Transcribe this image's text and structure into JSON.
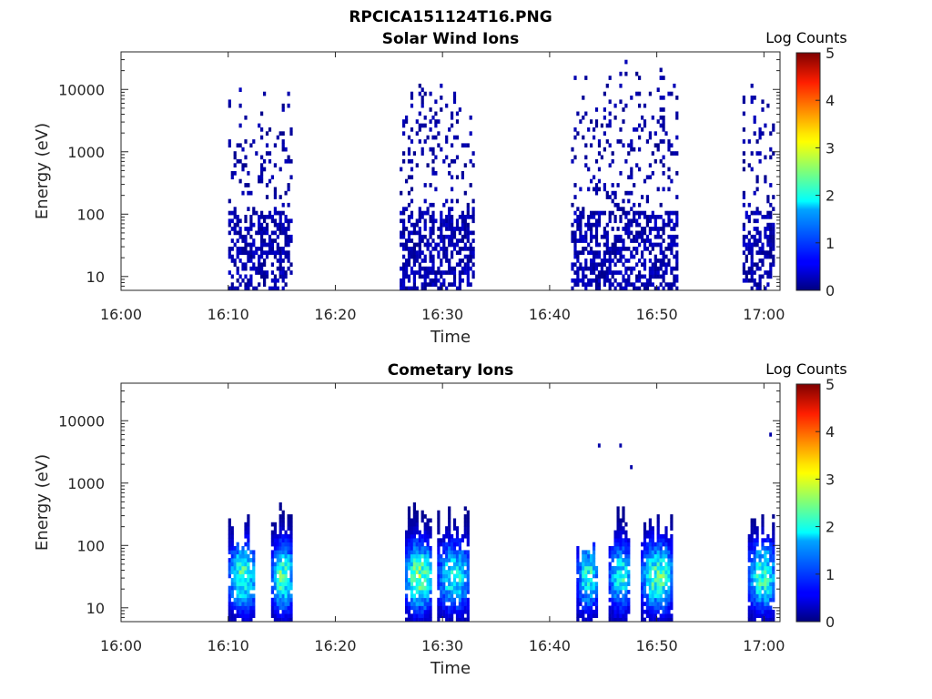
{
  "figure": {
    "title": "RPCICA151124T16.PNG"
  },
  "colorbar_label": "Log Counts",
  "colorbar_ticks": [
    "0",
    "1",
    "2",
    "3",
    "4",
    "5"
  ],
  "chart_data": [
    {
      "type": "heatmap",
      "title": "Solar Wind Ions",
      "xlabel": "Time",
      "ylabel": "Energy (eV)",
      "x_ticks": [
        "16:00",
        "16:10",
        "16:20",
        "16:30",
        "16:40",
        "16:50",
        "17:00"
      ],
      "x_range_minutes": [
        0,
        61.5
      ],
      "y_scale": "log",
      "y_ticks": [
        10,
        100,
        1000,
        10000
      ],
      "y_tick_labels": [
        "10",
        "100",
        "1000",
        "10000"
      ],
      "y_range": [
        6,
        40000
      ],
      "color_scale": "jet",
      "color_range": [
        0,
        5
      ],
      "grid": false,
      "bursts": [
        {
          "start": "16:10",
          "end": "16:16",
          "e_max": 15000,
          "low_energy_level": 0.3,
          "high_energy_level": 0.15
        },
        {
          "start": "16:26",
          "end": "16:33",
          "e_max": 13000,
          "low_energy_level": 0.3,
          "high_energy_level": 0.15
        },
        {
          "start": "16:42",
          "end": "16:52",
          "e_max": 35000,
          "low_energy_level": 0.3,
          "high_energy_level": 0.15
        },
        {
          "start": "16:58",
          "end": "17:01",
          "e_max": 14000,
          "low_energy_level": 0.3,
          "high_energy_level": 0.15
        }
      ]
    },
    {
      "type": "heatmap",
      "title": "Cometary Ions",
      "xlabel": "Time",
      "ylabel": "Energy (eV)",
      "x_ticks": [
        "16:00",
        "16:10",
        "16:20",
        "16:30",
        "16:40",
        "16:50",
        "17:00"
      ],
      "x_range_minutes": [
        0,
        61.5
      ],
      "y_scale": "log",
      "y_ticks": [
        10,
        100,
        1000,
        10000
      ],
      "y_tick_labels": [
        "10",
        "100",
        "1000",
        "10000"
      ],
      "y_range": [
        6,
        40000
      ],
      "color_scale": "jet",
      "color_range": [
        0,
        5
      ],
      "grid": false,
      "bursts": [
        {
          "start": "16:10",
          "end": "16:12.5",
          "e_max": 300,
          "peak_energy": 30,
          "peak_log_counts": 2.3
        },
        {
          "start": "16:14",
          "end": "16:16",
          "e_max": 600,
          "peak_energy": 30,
          "peak_log_counts": 2.3
        },
        {
          "start": "16:26.5",
          "end": "16:29",
          "e_max": 700,
          "peak_energy": 30,
          "peak_log_counts": 2.5
        },
        {
          "start": "16:29.5",
          "end": "16:32.5",
          "e_max": 500,
          "peak_energy": 30,
          "peak_log_counts": 2.0
        },
        {
          "start": "16:42.5",
          "end": "16:44.5",
          "e_max": 150,
          "peak_energy": 30,
          "peak_log_counts": 2.0
        },
        {
          "start": "16:45.5",
          "end": "16:47.5",
          "e_max": 400,
          "peak_energy": 30,
          "peak_log_counts": 2.0
        },
        {
          "start": "16:48.5",
          "end": "16:51.5",
          "e_max": 300,
          "peak_energy": 30,
          "peak_log_counts": 2.3
        },
        {
          "start": "16:58.5",
          "end": "17:01",
          "e_max": 300,
          "peak_energy": 30,
          "peak_log_counts": 2.2
        }
      ],
      "isolated_points": [
        {
          "time": "16:44.5",
          "energy": 4000
        },
        {
          "time": "16:46.5",
          "energy": 4000
        },
        {
          "time": "16:47.5",
          "energy": 1800
        },
        {
          "time": "17:00.5",
          "energy": 6000
        }
      ]
    }
  ]
}
